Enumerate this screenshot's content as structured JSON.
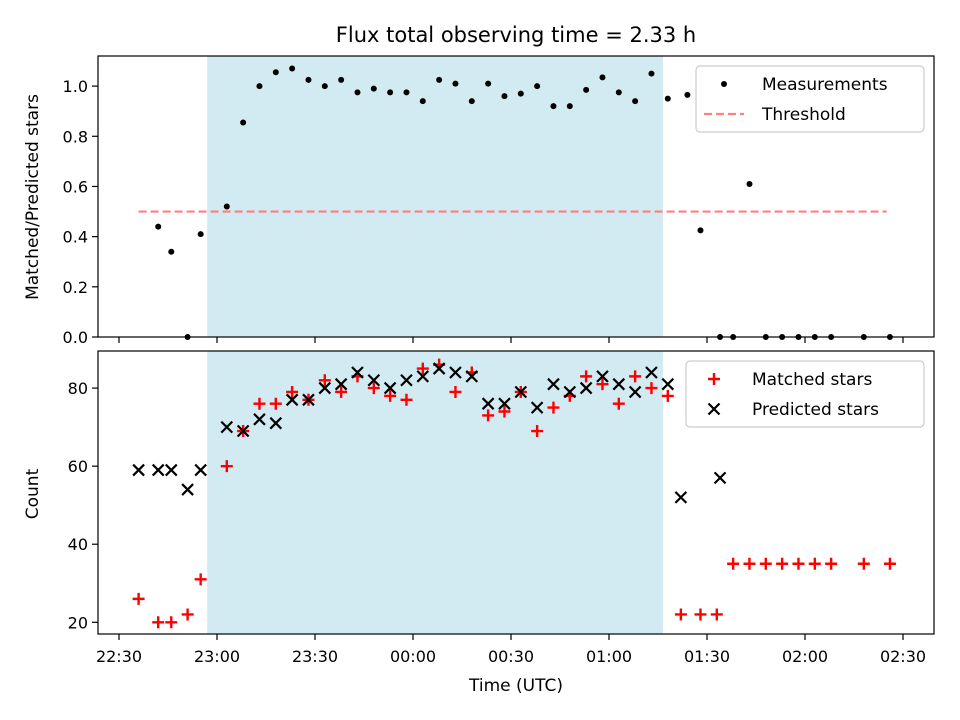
{
  "title": "Flux total observing time = 2.33 h",
  "colors": {
    "shade": "#add8e6",
    "measurements": "#000000",
    "threshold": "#ff7f7f",
    "matched": "#ff0000",
    "predicted": "#000000"
  },
  "chart_data": [
    {
      "type": "scatter",
      "ylabel": "Matched/Predicted stars",
      "ylim": [
        0,
        1.12
      ],
      "yticks": [
        0.0,
        0.2,
        0.4,
        0.6,
        0.8,
        1.0
      ],
      "ytick_labels": [
        "0.0",
        "0.2",
        "0.4",
        "0.6",
        "0.8",
        "1.0"
      ],
      "legend_position": "upper right",
      "shaded_interval": [
        "22:57",
        "23:57+01:22"
      ],
      "series": [
        {
          "name": "Measurements",
          "marker": "dot",
          "x": [
            "22:42",
            "22:46",
            "22:51",
            "22:55",
            "23:03",
            "23:08",
            "23:13",
            "23:18",
            "23:23",
            "23:28",
            "23:33",
            "23:38",
            "23:43",
            "23:48",
            "23:53",
            "23:58",
            "00:03",
            "00:08",
            "00:13",
            "00:18",
            "00:23",
            "00:28",
            "00:33",
            "00:38",
            "00:43",
            "00:48",
            "00:53",
            "00:58",
            "01:03",
            "01:08",
            "01:13",
            "01:18",
            "01:24",
            "01:28",
            "01:34",
            "01:38",
            "01:43",
            "01:48",
            "01:53",
            "01:58",
            "02:03",
            "02:08",
            "02:18",
            "02:26"
          ],
          "y": [
            0.44,
            0.34,
            0.0,
            0.41,
            0.52,
            0.855,
            1.0,
            1.055,
            1.07,
            1.025,
            1.0,
            1.025,
            0.975,
            0.99,
            0.975,
            0.975,
            0.94,
            1.025,
            1.01,
            0.94,
            1.01,
            0.96,
            0.97,
            1.0,
            0.92,
            0.92,
            0.985,
            1.035,
            0.975,
            0.94,
            1.05,
            0.95,
            0.965,
            0.425,
            0.0,
            0.0,
            0.61,
            0.0,
            0.0,
            0.0,
            0.0,
            0.0,
            0.0,
            0.0
          ]
        },
        {
          "name": "Threshold",
          "marker": "dashed-line",
          "x": [
            "22:36",
            "02:25"
          ],
          "y": [
            0.5,
            0.5
          ]
        }
      ]
    },
    {
      "type": "scatter",
      "ylabel": "Count",
      "xlabel": "Time (UTC)",
      "ylim": [
        17,
        89.5
      ],
      "yticks": [
        20,
        40,
        60,
        80
      ],
      "ytick_labels": [
        "20",
        "40",
        "60",
        "80"
      ],
      "xticks": [
        "22:30",
        "23:00",
        "23:30",
        "00:00",
        "00:30",
        "01:00",
        "01:30",
        "02:00",
        "02:30"
      ],
      "legend_position": "upper right",
      "series": [
        {
          "name": "Matched stars",
          "marker": "plus",
          "x": [
            "22:36",
            "22:42",
            "22:46",
            "22:51",
            "22:55",
            "23:03",
            "23:08",
            "23:13",
            "23:18",
            "23:23",
            "23:28",
            "23:33",
            "23:38",
            "23:43",
            "23:48",
            "23:53",
            "23:58",
            "00:03",
            "00:08",
            "00:13",
            "00:18",
            "00:23",
            "00:28",
            "00:33",
            "00:38",
            "00:43",
            "00:48",
            "00:53",
            "00:58",
            "01:03",
            "01:08",
            "01:13",
            "01:18",
            "01:22",
            "01:28",
            "01:33",
            "01:38",
            "01:43",
            "01:48",
            "01:53",
            "01:58",
            "02:03",
            "02:08",
            "02:18",
            "02:26"
          ],
          "y": [
            26,
            20,
            20,
            22,
            31,
            60,
            69,
            76,
            76,
            79,
            77,
            82,
            79,
            83,
            80,
            78,
            77,
            85,
            86,
            79,
            84,
            73,
            74,
            79,
            69,
            75,
            78,
            83,
            81,
            76,
            83,
            80,
            78,
            22,
            22,
            22,
            35,
            35,
            35,
            35,
            35,
            35,
            35,
            35,
            35
          ]
        },
        {
          "name": "Predicted stars",
          "marker": "x",
          "x": [
            "22:36",
            "22:42",
            "22:46",
            "22:51",
            "22:55",
            "23:03",
            "23:08",
            "23:13",
            "23:18",
            "23:23",
            "23:28",
            "23:33",
            "23:38",
            "23:43",
            "23:48",
            "23:53",
            "23:58",
            "00:03",
            "00:08",
            "00:13",
            "00:18",
            "00:23",
            "00:28",
            "00:33",
            "00:38",
            "00:43",
            "00:48",
            "00:53",
            "00:58",
            "01:03",
            "01:08",
            "01:13",
            "01:18",
            "01:22",
            "01:34"
          ],
          "y": [
            59,
            59,
            59,
            54,
            59,
            70,
            69,
            72,
            71,
            77,
            77,
            80,
            81,
            84,
            82,
            80,
            82,
            83,
            85,
            84,
            83,
            76,
            76,
            79,
            75,
            81,
            79,
            80,
            83,
            81,
            79,
            84,
            81,
            52,
            57
          ]
        }
      ]
    }
  ]
}
